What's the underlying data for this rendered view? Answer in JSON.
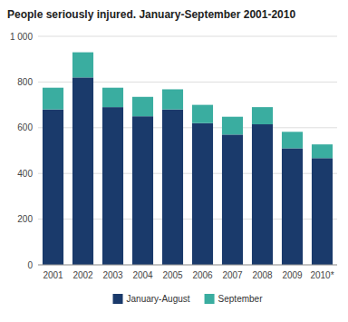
{
  "chart_data": {
    "type": "bar",
    "stacked": true,
    "title": "People seriously injured. January-September 2001-2010",
    "categories": [
      "2001",
      "2002",
      "2003",
      "2004",
      "2005",
      "2006",
      "2007",
      "2008",
      "2009",
      "2010*"
    ],
    "series": [
      {
        "name": "January-August",
        "color": "#1a3a6b",
        "values": [
          680,
          820,
          690,
          650,
          680,
          620,
          570,
          615,
          510,
          467
        ]
      },
      {
        "name": "September",
        "color": "#3aada0",
        "values": [
          95,
          110,
          85,
          85,
          88,
          80,
          78,
          75,
          72,
          60
        ]
      }
    ],
    "ylim": [
      0,
      1000
    ],
    "yticks": [
      0,
      200,
      400,
      600,
      800,
      {
        "value": 1000,
        "label": "1 000"
      }
    ],
    "grid": true,
    "legend": "bottom"
  }
}
